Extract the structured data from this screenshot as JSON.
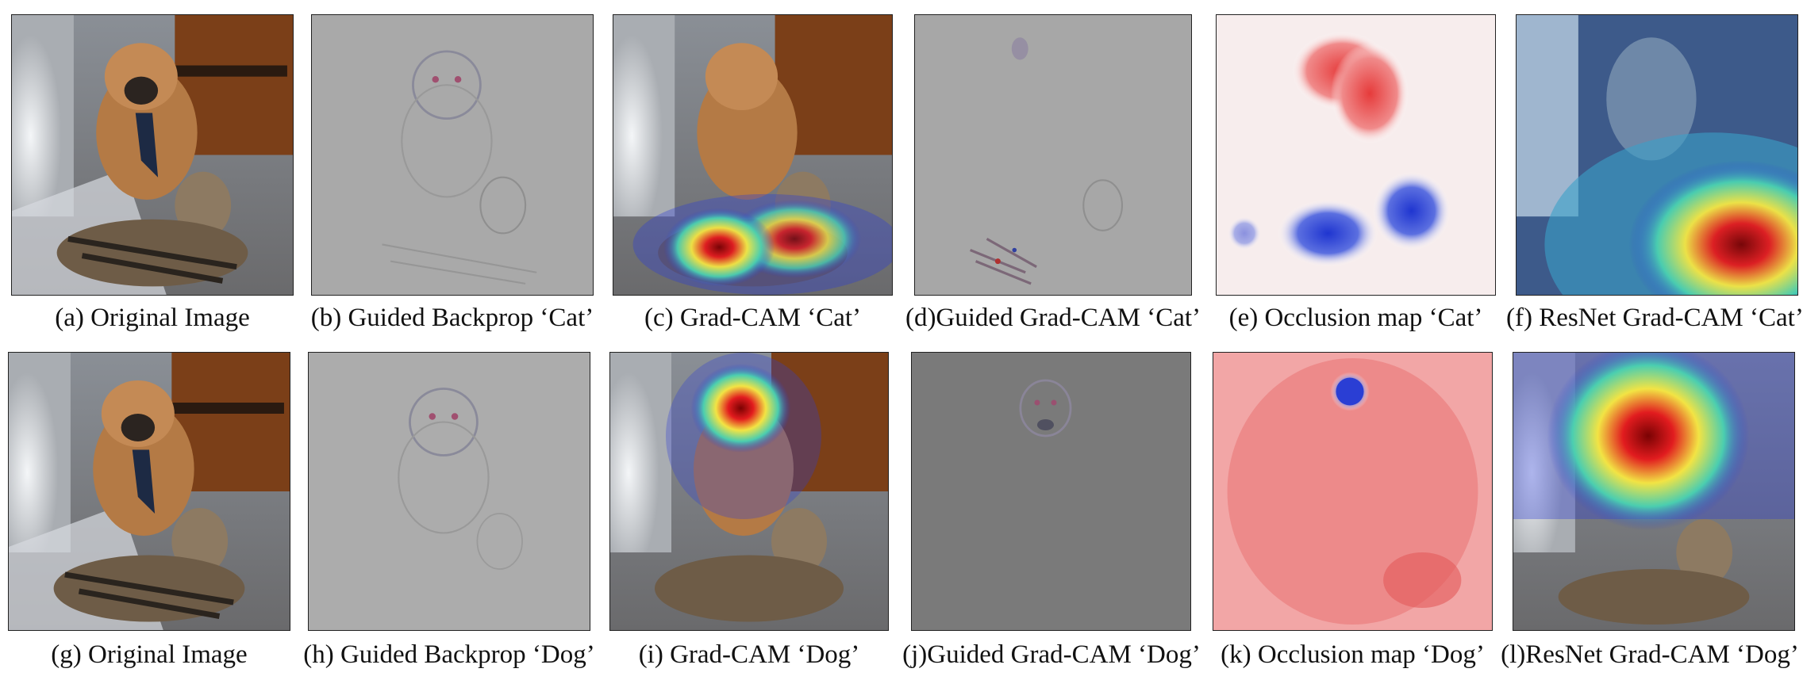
{
  "figure": {
    "row1": {
      "a": "(a) Original Image",
      "b": "(b) Guided Backprop ‘Cat’",
      "c": "(c) Grad-CAM ‘Cat’",
      "d": "(d)Guided Grad-CAM ‘Cat’",
      "e": "(e) Occlusion map ‘Cat’",
      "f": "(f) ResNet Grad-CAM ‘Cat’"
    },
    "row2": {
      "g": "(g) Original Image",
      "h": "(h) Guided Backprop ‘Dog’",
      "i": "(i) Grad-CAM ‘Dog’",
      "j": "(j)Guided Grad-CAM ‘Dog’",
      "k": "(k) Occlusion map ‘Dog’",
      "l": "(l)ResNet Grad-CAM ‘Dog’"
    }
  },
  "colors": {
    "heat_red": "#d7191c",
    "heat_yellow": "#f5e642",
    "heat_blue": "#2c3bd6",
    "occlusion_red": "#e84a4a",
    "occlusion_blue": "#2f45d8",
    "guided_gray": "#a8a8a8",
    "dark_gray": "#7a7a7a"
  }
}
